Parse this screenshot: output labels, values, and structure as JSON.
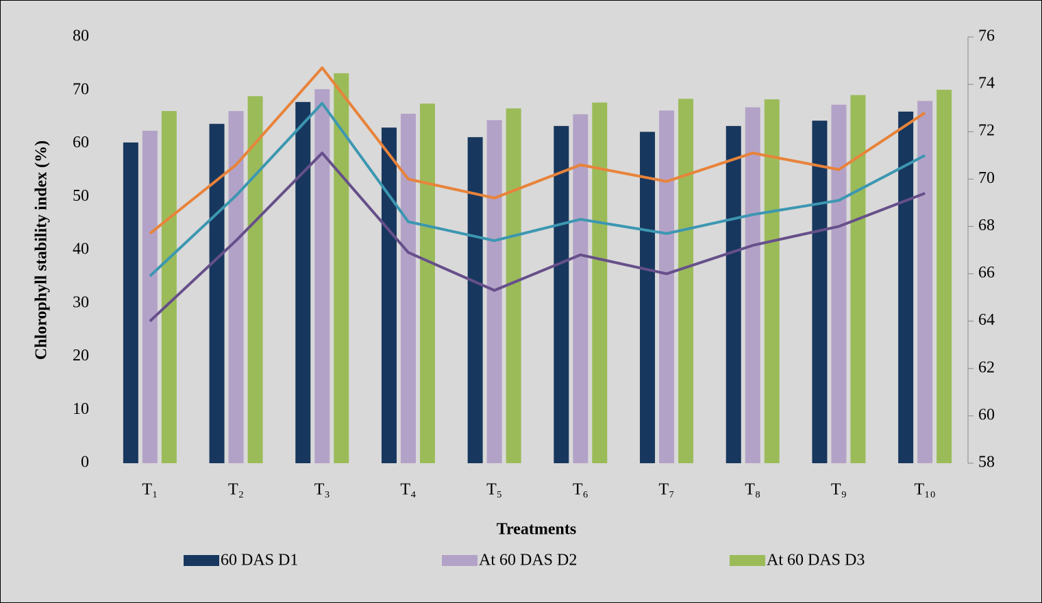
{
  "chart_data": {
    "type": "bar",
    "x_label": "Treatments",
    "y_label": "Chlorophyll stability index (%)",
    "categories": [
      "T₁",
      "T₂",
      "T₃",
      "T₄",
      "T₅",
      "T₆",
      "T₇",
      "T₈",
      "T₉",
      "T₁₀"
    ],
    "ylim": [
      0,
      80
    ],
    "yticks": [
      0,
      10,
      20,
      30,
      40,
      50,
      60,
      70,
      80
    ],
    "y2lim": [
      58,
      76
    ],
    "y2ticks": [
      58,
      60,
      62,
      64,
      66,
      68,
      70,
      72,
      74,
      76
    ],
    "series": [
      {
        "name": "60 DAS D1",
        "type": "bar",
        "color": "#17375e",
        "values": [
          60.2,
          63.7,
          67.8,
          63.0,
          61.2,
          63.3,
          62.2,
          63.3,
          64.3,
          66.0
        ]
      },
      {
        "name": "At 60 DAS D2",
        "type": "bar",
        "color": "#b3a2c7",
        "values": [
          62.4,
          66.1,
          70.2,
          65.6,
          64.4,
          65.5,
          66.2,
          66.8,
          67.3,
          68.0
        ]
      },
      {
        "name": "At 60 DAS D3",
        "type": "bar",
        "color": "#9bbb59",
        "values": [
          66.1,
          68.9,
          73.2,
          67.5,
          66.6,
          67.7,
          68.4,
          68.3,
          69.1,
          70.1
        ]
      },
      {
        "type": "line",
        "axis": "y2",
        "color": "#e8833a",
        "values": [
          67.7,
          70.6,
          74.7,
          70.0,
          69.2,
          70.6,
          69.9,
          71.1,
          70.4,
          72.8
        ]
      },
      {
        "type": "line",
        "axis": "y2",
        "color": "#3c97b1",
        "values": [
          65.9,
          69.3,
          73.2,
          68.2,
          67.4,
          68.3,
          67.7,
          68.5,
          69.1,
          71.0
        ]
      },
      {
        "type": "line",
        "axis": "y2",
        "color": "#664f8a",
        "values": [
          64.0,
          67.4,
          71.1,
          66.9,
          65.3,
          66.8,
          66.0,
          67.2,
          68.0,
          69.4
        ]
      }
    ]
  }
}
